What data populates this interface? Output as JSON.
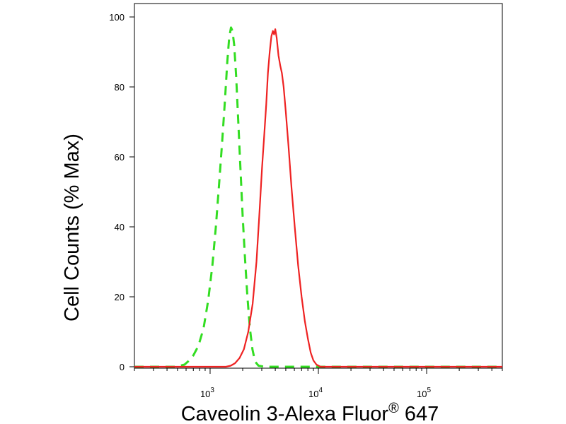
{
  "chart_data": {
    "type": "line",
    "xlabel_main": "Caveolin 3-Alexa Fluor",
    "xlabel_sup": "®",
    "xlabel_tail": " 647",
    "ylabel": "Cell Counts (% Max)",
    "x_scale": "log",
    "xlim": [
      200,
      500000
    ],
    "ylim": [
      0,
      100
    ],
    "y_ticks": [
      0,
      20,
      40,
      60,
      80,
      100
    ],
    "x_ticks": [
      {
        "value": 1000,
        "base": "10",
        "exp": "3"
      },
      {
        "value": 10000,
        "base": "10",
        "exp": "4"
      },
      {
        "value": 100000,
        "base": "10",
        "exp": "5"
      }
    ],
    "grid": false,
    "legend": "none",
    "series": [
      {
        "color": "#33dd22",
        "style": "dashed",
        "points": [
          [
            200,
            0
          ],
          [
            480,
            0
          ],
          [
            580,
            0.6
          ],
          [
            680,
            2.5
          ],
          [
            780,
            6
          ],
          [
            870,
            11
          ],
          [
            960,
            19
          ],
          [
            1050,
            29
          ],
          [
            1130,
            40
          ],
          [
            1210,
            52
          ],
          [
            1290,
            64
          ],
          [
            1370,
            76
          ],
          [
            1440,
            87
          ],
          [
            1500,
            94
          ],
          [
            1560,
            97
          ],
          [
            1610,
            96
          ],
          [
            1670,
            92
          ],
          [
            1740,
            83
          ],
          [
            1820,
            70
          ],
          [
            1910,
            56
          ],
          [
            2000,
            43
          ],
          [
            2100,
            31
          ],
          [
            2210,
            20
          ],
          [
            2330,
            11
          ],
          [
            2460,
            5
          ],
          [
            2600,
            1.5
          ],
          [
            2800,
            0.3
          ],
          [
            3200,
            0
          ],
          [
            500000,
            0
          ]
        ]
      },
      {
        "color": "#ee2222",
        "style": "solid",
        "points": [
          [
            200,
            0
          ],
          [
            1400,
            0
          ],
          [
            1550,
            0.3
          ],
          [
            1700,
            1
          ],
          [
            1870,
            2.5
          ],
          [
            2050,
            5
          ],
          [
            2250,
            10
          ],
          [
            2470,
            18
          ],
          [
            2680,
            30
          ],
          [
            2870,
            45
          ],
          [
            3020,
            57
          ],
          [
            3160,
            66
          ],
          [
            3300,
            75
          ],
          [
            3420,
            84
          ],
          [
            3550,
            90
          ],
          [
            3680,
            94.5
          ],
          [
            3800,
            96
          ],
          [
            3900,
            95
          ],
          [
            4000,
            96.5
          ],
          [
            4120,
            94
          ],
          [
            4280,
            89
          ],
          [
            4450,
            86
          ],
          [
            4600,
            84
          ],
          [
            4780,
            80
          ],
          [
            5000,
            73
          ],
          [
            5300,
            63
          ],
          [
            5650,
            51
          ],
          [
            6050,
            40
          ],
          [
            6500,
            29
          ],
          [
            7000,
            20
          ],
          [
            7500,
            13
          ],
          [
            8000,
            8
          ],
          [
            8500,
            4
          ],
          [
            9000,
            1.8
          ],
          [
            9600,
            0.6
          ],
          [
            10500,
            0
          ],
          [
            500000,
            0
          ]
        ]
      }
    ]
  }
}
